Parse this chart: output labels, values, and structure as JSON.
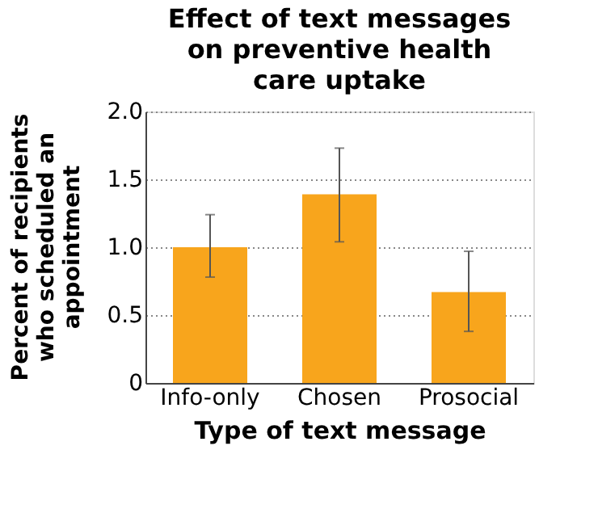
{
  "chart_data": {
    "type": "bar",
    "title": "Effect of text messages on preventive health care uptake",
    "xlabel": "Type of text message",
    "ylabel": "Percent of recipients who scheduled an appointment",
    "categories": [
      "Info-only",
      "Chosen",
      "Prosocial"
    ],
    "values": [
      1.0,
      1.39,
      0.67
    ],
    "errors": [
      [
        0.78,
        1.24
      ],
      [
        1.04,
        1.73
      ],
      [
        0.38,
        0.97
      ]
    ],
    "color": "#f8a51c",
    "ylim": [
      0,
      2.0
    ],
    "yticks": [
      0,
      0.5,
      {
        "value": 1,
        "label": "1.0"
      },
      1.5,
      {
        "value": 2,
        "label": "2.0"
      }
    ],
    "grid": "y"
  }
}
